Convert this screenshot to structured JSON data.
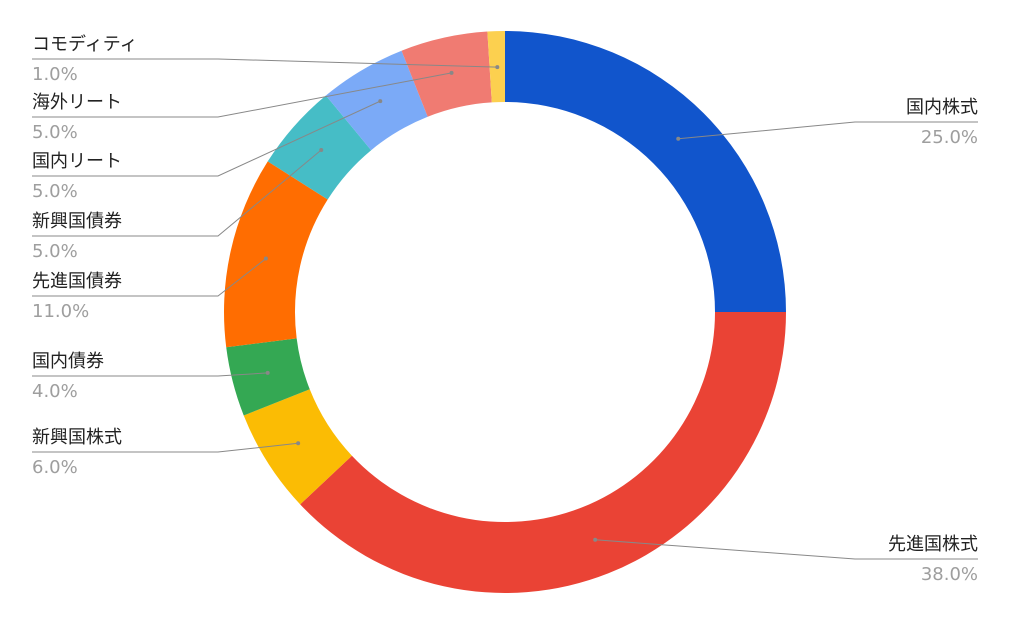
{
  "chart_data": {
    "type": "pie",
    "categories": [
      "国内株式",
      "先進国株式",
      "新興国株式",
      "国内債券",
      "先進国債券",
      "新興国債券",
      "国内リート",
      "海外リート",
      "コモディティ"
    ],
    "values": [
      25,
      38,
      6,
      4,
      11,
      5,
      5,
      5,
      1
    ],
    "value_labels": [
      "25.0%",
      "38.0%",
      "6.0%",
      "4.0%",
      "11.0%",
      "5.0%",
      "5.0%",
      "5.0%",
      "1.0%"
    ],
    "colors": [
      "#1155cc",
      "#ea4335",
      "#fbbc04",
      "#34a853",
      "#ff6d01",
      "#46bdc6",
      "#7baaf7",
      "#f07b72",
      "#fcd04f"
    ]
  }
}
